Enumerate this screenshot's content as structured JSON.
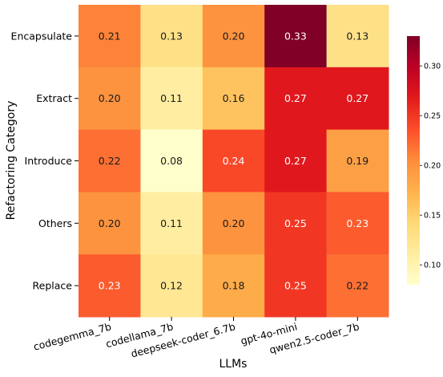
{
  "chart_data": {
    "type": "heatmap",
    "xlabel": "LLMs",
    "ylabel": "Refactoring Category",
    "x_categories": [
      "codegemma_7b",
      "codellama_7b",
      "deepseek-coder_6.7b",
      "gpt-4o-mini",
      "qwen2.5-coder_7b"
    ],
    "y_categories": [
      "Encapsulate",
      "Extract",
      "Introduce",
      "Others",
      "Replace"
    ],
    "values": [
      [
        0.21,
        0.13,
        0.2,
        0.33,
        0.13
      ],
      [
        0.2,
        0.11,
        0.16,
        0.27,
        0.27
      ],
      [
        0.22,
        0.08,
        0.24,
        0.27,
        0.19
      ],
      [
        0.2,
        0.11,
        0.2,
        0.25,
        0.23
      ],
      [
        0.23,
        0.12,
        0.18,
        0.25,
        0.22
      ]
    ],
    "value_labels": [
      [
        "0.21",
        "0.13",
        "0.20",
        "0.33",
        "0.13"
      ],
      [
        "0.20",
        "0.11",
        "0.16",
        "0.27",
        "0.27"
      ],
      [
        "0.22",
        "0.08",
        "0.24",
        "0.27",
        "0.19"
      ],
      [
        "0.20",
        "0.11",
        "0.20",
        "0.25",
        "0.23"
      ],
      [
        "0.23",
        "0.12",
        "0.18",
        "0.25",
        "0.22"
      ]
    ],
    "colormap": "YlOrRd",
    "color_range": [
      0.08,
      0.33
    ],
    "colorbar_ticks": [
      0.1,
      0.15,
      0.2,
      0.25,
      0.3
    ],
    "colorbar_tick_labels": [
      "0.10",
      "0.15",
      "0.20",
      "0.25",
      "0.30"
    ],
    "colorbar_position": "right",
    "x_tick_rotation_deg": 15,
    "grid": false
  }
}
